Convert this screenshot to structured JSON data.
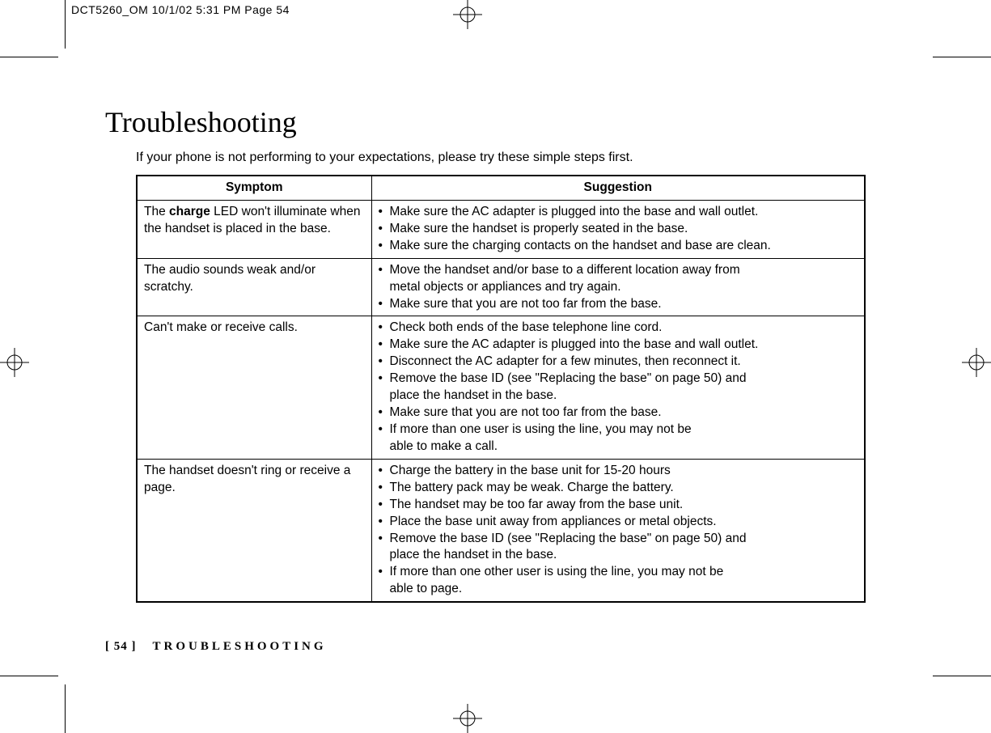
{
  "print_header": "DCT5260_OM  10/1/02  5:31 PM  Page 54",
  "title": "Troubleshooting",
  "intro": "If your phone is not performing to your expectations, please try these simple steps first.",
  "headers": {
    "col1": "Symptom",
    "col2": "Suggestion"
  },
  "rows": [
    {
      "symptom_pre": "The ",
      "symptom_bold": "charge",
      "symptom_post": " LED won't illuminate when the handset is placed in the base.",
      "suggestions": [
        [
          "Make sure the AC adapter is plugged into the base and wall outlet."
        ],
        [
          "Make sure the handset is properly seated in the base."
        ],
        [
          "Make sure the charging contacts on the handset and base are clean."
        ]
      ]
    },
    {
      "symptom": "The audio sounds weak and/or scratchy.",
      "suggestions": [
        [
          "Move the handset and/or base to a different location away from",
          "metal objects or appliances and try again."
        ],
        [
          "Make sure that you are not too far from the base."
        ]
      ]
    },
    {
      "symptom": "Can't make or receive calls.",
      "suggestions": [
        [
          "Check both ends of the base telephone line cord."
        ],
        [
          "Make sure the AC adapter is plugged into the base and wall outlet."
        ],
        [
          "Disconnect the AC adapter for a few minutes, then reconnect it."
        ],
        [
          "Remove the base ID (see \"Replacing the base\" on page 50) and",
          "place the handset in the base."
        ],
        [
          "Make sure that you are not too far from the base."
        ],
        [
          "If more than one user is using the line, you may not be",
          "able to make a call."
        ]
      ]
    },
    {
      "symptom": "The handset doesn't ring or receive a page.",
      "suggestions": [
        [
          "Charge the battery in the base unit for 15-20 hours"
        ],
        [
          "The battery pack may be weak. Charge the battery."
        ],
        [
          "The handset may be too far away from the base unit."
        ],
        [
          "Place the base unit away from appliances or metal objects."
        ],
        [
          "Remove the base ID (see \"Replacing the base\" on page 50) and",
          "place the handset in the base."
        ],
        [
          "If more than one other user is using the line, you may not be",
          "able to page."
        ]
      ]
    }
  ],
  "footer": {
    "page_num": "[ 54 ]",
    "section": "TROUBLESHOOTING"
  },
  "colors": {
    "text": "#000000",
    "bg": "#ffffff",
    "border": "#000000"
  }
}
